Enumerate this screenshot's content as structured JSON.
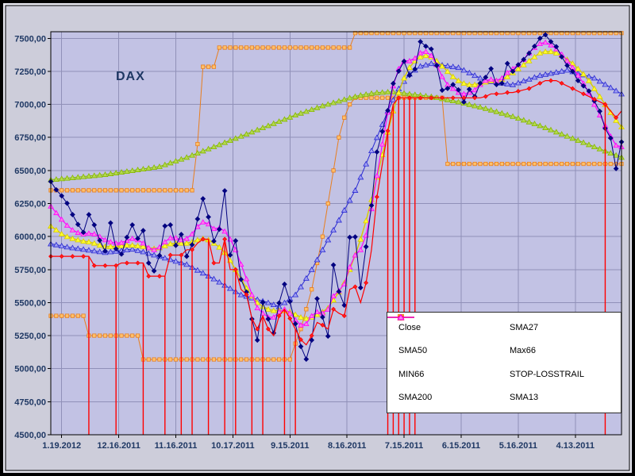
{
  "chart_data": {
    "type": "line",
    "title": "DAX",
    "xlabel": "",
    "ylabel": "",
    "ylim": [
      4500,
      7550
    ],
    "grid": true,
    "legend_position": "inside-bottom-right",
    "colors": {
      "frame": "#000000",
      "gap_band": "#e9e9f2",
      "chart_bg": "#cdcdda",
      "plot_bg": "#c2c2e4",
      "grid": "#9090b8",
      "axis_text": "#1f3864",
      "legend_bg": "#ffffff"
    },
    "y_tick_values": [
      7500,
      7250,
      7000,
      6750,
      6500,
      6250,
      6000,
      5750,
      5500,
      5250,
      5000,
      4750,
      4500
    ],
    "y_tick_labels": [
      "7500,00",
      "7250,00",
      "7000,00",
      "6750,00",
      "6500,00",
      "6250,00",
      "6000,00",
      "5750,00",
      "5500,00",
      "5250,00",
      "5000,00",
      "4750,00",
      "4500,00"
    ],
    "x_tick_indices": [
      2,
      12.5,
      23,
      33.5,
      44,
      54.5,
      65,
      75.5,
      86,
      96.5
    ],
    "x_tick_labels": [
      "1.19.2012",
      "12.16.2011",
      "11.16.2011",
      "10.17.2011",
      "9.15.2011",
      "8.16.2011",
      "7.15.2011",
      "6.15.2011",
      "5.16.2011",
      "4.13.2011"
    ],
    "draw_order": [
      "Max66",
      "MIN66",
      "SMA200",
      "SMA50",
      "SMA27",
      "SMA13",
      "Close",
      "STOP-LOSSTRAIL"
    ],
    "series": [
      {
        "name": "Close",
        "marker": "diamond",
        "color": "#000080",
        "fill": "#000080",
        "line_width": 1,
        "marker_size": 2.8,
        "marker_every": 1,
        "values": [
          6416,
          6354,
          6308,
          6252,
          6166,
          6092,
          6032,
          6166,
          6088,
          5971,
          5890,
          6103,
          5907,
          5867,
          5994,
          6088,
          5985,
          6045,
          5800,
          5740,
          5856,
          6080,
          6088,
          5933,
          6016,
          5850,
          5938,
          6133,
          6286,
          6148,
          5965,
          6055,
          6346,
          5860,
          5968,
          5675,
          5580,
          5376,
          5216,
          5502,
          5376,
          5270,
          5497,
          5639,
          5508,
          5340,
          5168,
          5072,
          5216,
          5530,
          5390,
          5246,
          5785,
          5584,
          5480,
          5994,
          5997,
          5613,
          5923,
          6236,
          6640,
          6796,
          6954,
          7158,
          7252,
          7326,
          7220,
          7267,
          7475,
          7440,
          7419,
          7294,
          7107,
          7121,
          7150,
          7110,
          7018,
          7115,
          7060,
          7160,
          7205,
          7270,
          7150,
          7160,
          7310,
          7250,
          7300,
          7340,
          7387,
          7440,
          7500,
          7527,
          7475,
          7437,
          7360,
          7295,
          7250,
          7180,
          7140,
          7101,
          7026,
          6948,
          6818,
          6745,
          6514,
          6716
        ]
      },
      {
        "name": "SMA50",
        "marker": "triangle",
        "color": "#2a2ad2",
        "fill": "#9f9ff2",
        "line_width": 1,
        "marker_size": 3,
        "marker_every": 1,
        "values": [
          5945,
          5938,
          5930,
          5922,
          5915,
          5910,
          5904,
          5898,
          5892,
          5886,
          5880,
          5885,
          5890,
          5895,
          5900,
          5905,
          5895,
          5885,
          5873,
          5861,
          5850,
          5838,
          5826,
          5814,
          5802,
          5790,
          5768,
          5746,
          5724,
          5702,
          5680,
          5656,
          5632,
          5608,
          5584,
          5560,
          5548,
          5536,
          5524,
          5512,
          5500,
          5485,
          5470,
          5500,
          5530,
          5560,
          5620,
          5685,
          5750,
          5825,
          5900,
          5975,
          6050,
          6125,
          6200,
          6275,
          6350,
          6450,
          6550,
          6650,
          6750,
          6850,
          6950,
          7035,
          7120,
          7175,
          7230,
          7260,
          7290,
          7300,
          7310,
          7304,
          7298,
          7292,
          7286,
          7280,
          7260,
          7240,
          7220,
          7200,
          7180,
          7174,
          7168,
          7162,
          7156,
          7150,
          7164,
          7178,
          7192,
          7206,
          7220,
          7228,
          7236,
          7244,
          7252,
          7260,
          7248,
          7236,
          7224,
          7212,
          7200,
          7176,
          7152,
          7128,
          7104,
          7080
        ]
      },
      {
        "name": "MIN66",
        "marker": "square",
        "color": "#e87e1e",
        "fill": "#ffc06a",
        "line_width": 1,
        "marker_size": 2.2,
        "marker_every": 1,
        "values": [
          5400,
          5400,
          5400,
          5400,
          5400,
          5400,
          5400,
          5250,
          5250,
          5250,
          5250,
          5250,
          5250,
          5250,
          5250,
          5250,
          5250,
          5070,
          5070,
          5070,
          5070,
          5070,
          5070,
          5070,
          5070,
          5070,
          5070,
          5070,
          5070,
          5070,
          5070,
          5070,
          5070,
          5070,
          5070,
          5070,
          5070,
          5070,
          5070,
          5070,
          5070,
          5070,
          5070,
          5070,
          5070,
          5190,
          5300,
          5450,
          5600,
          5800,
          6000,
          6250,
          6500,
          6750,
          6900,
          7000,
          7050,
          7050,
          7050,
          7050,
          7050,
          7050,
          7050,
          7050,
          7050,
          7050,
          7050,
          7050,
          7050,
          7050,
          7050,
          7050,
          7050,
          6550,
          6550,
          6550,
          6550,
          6550,
          6550,
          6550,
          6550,
          6550,
          6550,
          6550,
          6550,
          6550,
          6550,
          6550,
          6550,
          6550,
          6550,
          6550,
          6550,
          6550,
          6550,
          6550,
          6550,
          6550,
          6550,
          6550,
          6550,
          6550,
          6550,
          6550,
          6550,
          6550
        ]
      },
      {
        "name": "SMA200",
        "marker": "triangle",
        "color": "#86b800",
        "fill": "#b4d94e",
        "line_width": 1,
        "marker_size": 3,
        "marker_every": 1,
        "values": [
          6430,
          6434,
          6438,
          6442,
          6446,
          6450,
          6454,
          6458,
          6462,
          6466,
          6470,
          6476,
          6482,
          6488,
          6494,
          6500,
          6506,
          6512,
          6518,
          6524,
          6530,
          6544,
          6558,
          6572,
          6586,
          6600,
          6616,
          6632,
          6648,
          6664,
          6680,
          6696,
          6712,
          6728,
          6744,
          6760,
          6776,
          6792,
          6808,
          6824,
          6840,
          6856,
          6872,
          6888,
          6904,
          6920,
          6934,
          6948,
          6962,
          6976,
          6990,
          7002,
          7014,
          7026,
          7038,
          7050,
          7060,
          7070,
          7077,
          7084,
          7090,
          7092,
          7095,
          7094,
          7092,
          7085,
          7080,
          7075,
          7070,
          7065,
          7060,
          7052,
          7044,
          7036,
          7028,
          7020,
          7010,
          7000,
          6990,
          6980,
          6970,
          6958,
          6946,
          6934,
          6922,
          6910,
          6896,
          6882,
          6868,
          6854,
          6840,
          6824,
          6808,
          6792,
          6776,
          6760,
          6744,
          6728,
          6712,
          6696,
          6680,
          6664,
          6648,
          6632,
          6616,
          6600
        ]
      },
      {
        "name": "SMA27",
        "marker": "triangle",
        "color": "#d8cc00",
        "fill": "#ffff2e",
        "line_width": 1.4,
        "marker_size": 3,
        "marker_every": 1,
        "values": [
          6080,
          6050,
          6020,
          6000,
          5985,
          5975,
          5965,
          5960,
          5950,
          5935,
          5925,
          5925,
          5925,
          5930,
          5935,
          5935,
          5930,
          5925,
          5915,
          5910,
          5915,
          5930,
          5945,
          5950,
          5950,
          5950,
          5960,
          5975,
          5985,
          5975,
          5950,
          5920,
          5880,
          5820,
          5750,
          5680,
          5610,
          5550,
          5500,
          5470,
          5450,
          5440,
          5440,
          5440,
          5430,
          5410,
          5390,
          5380,
          5390,
          5410,
          5430,
          5460,
          5520,
          5580,
          5650,
          5750,
          5860,
          5980,
          6120,
          6280,
          6450,
          6620,
          6790,
          6950,
          7090,
          7200,
          7280,
          7330,
          7360,
          7370,
          7360,
          7330,
          7290,
          7250,
          7210,
          7180,
          7160,
          7150,
          7150,
          7160,
          7170,
          7180,
          7180,
          7190,
          7210,
          7240,
          7270,
          7300,
          7330,
          7360,
          7390,
          7400,
          7400,
          7390,
          7370,
          7340,
          7310,
          7270,
          7230,
          7180,
          7120,
          7060,
          7000,
          6940,
          6880,
          6830
        ]
      },
      {
        "name": "Max66",
        "marker": "square",
        "color": "#e87e1e",
        "fill": "#ffc06a",
        "line_width": 1,
        "marker_size": 2.2,
        "marker_every": 1,
        "values": [
          6350,
          6350,
          6350,
          6350,
          6350,
          6350,
          6350,
          6350,
          6350,
          6350,
          6350,
          6350,
          6350,
          6350,
          6350,
          6350,
          6350,
          6350,
          6350,
          6350,
          6350,
          6350,
          6350,
          6350,
          6350,
          6350,
          6350,
          6700,
          7285,
          7285,
          7285,
          7430,
          7430,
          7430,
          7430,
          7430,
          7430,
          7430,
          7430,
          7430,
          7430,
          7430,
          7430,
          7430,
          7430,
          7430,
          7430,
          7430,
          7430,
          7430,
          7430,
          7430,
          7430,
          7430,
          7430,
          7430,
          7540,
          7540,
          7540,
          7540,
          7540,
          7540,
          7540,
          7540,
          7540,
          7540,
          7540,
          7540,
          7540,
          7540,
          7540,
          7540,
          7540,
          7540,
          7540,
          7540,
          7540,
          7540,
          7540,
          7540,
          7540,
          7540,
          7540,
          7540,
          7540,
          7540,
          7540,
          7540,
          7540,
          7540,
          7540,
          7540,
          7540,
          7540,
          7540,
          7540,
          7540,
          7540,
          7540,
          7540,
          7540,
          7540,
          7540,
          7540,
          7540,
          7540
        ]
      },
      {
        "name": "STOP-LOSSTRAIL",
        "marker": "diamond",
        "color": "#ff0000",
        "fill": "#ff2020",
        "line_width": 1.2,
        "marker_size": 2.4,
        "marker_every": 2,
        "spike_indices": [
          7,
          12,
          17,
          21,
          24,
          26,
          29,
          32,
          34,
          37,
          39,
          43,
          45,
          62,
          63,
          64,
          65,
          66,
          67,
          102
        ],
        "values": [
          5850,
          5850,
          5850,
          5850,
          5850,
          5850,
          5850,
          5850,
          5780,
          5780,
          5780,
          5780,
          5780,
          5800,
          5800,
          5800,
          5800,
          5800,
          5700,
          5700,
          5700,
          5700,
          5860,
          5860,
          5860,
          5900,
          5900,
          5950,
          5980,
          5980,
          5800,
          5800,
          5980,
          5750,
          5750,
          5600,
          5560,
          5380,
          5300,
          5400,
          5300,
          5250,
          5400,
          5450,
          5380,
          5300,
          5220,
          5180,
          5250,
          5350,
          5330,
          5300,
          5450,
          5420,
          5400,
          5600,
          5620,
          5500,
          5650,
          5900,
          6300,
          6550,
          6800,
          7000,
          7050,
          7050,
          7050,
          7050,
          7050,
          7050,
          7050,
          7050,
          7050,
          7050,
          7050,
          7050,
          7050,
          7050,
          7050,
          7050,
          7060,
          7080,
          7080,
          7080,
          7090,
          7090,
          7100,
          7110,
          7120,
          7140,
          7160,
          7180,
          7180,
          7180,
          7160,
          7140,
          7120,
          7100,
          7080,
          7060,
          7040,
          7020,
          7000,
          6950,
          6900,
          6950
        ]
      },
      {
        "name": "SMA13",
        "marker": "triangle",
        "color": "#ff00ff",
        "fill": "#ff7ce8",
        "line_width": 1.2,
        "marker_size": 2.8,
        "marker_every": 1,
        "values": [
          6230,
          6180,
          6130,
          6085,
          6050,
          6030,
          6020,
          6025,
          6020,
          6000,
          5975,
          5960,
          5950,
          5955,
          5970,
          5985,
          5975,
          5950,
          5915,
          5900,
          5920,
          5960,
          5990,
          5990,
          5975,
          5985,
          6020,
          6075,
          6110,
          6095,
          6060,
          6065,
          6040,
          5980,
          5900,
          5790,
          5680,
          5560,
          5460,
          5420,
          5390,
          5390,
          5430,
          5450,
          5420,
          5370,
          5330,
          5340,
          5400,
          5430,
          5420,
          5450,
          5550,
          5590,
          5640,
          5770,
          5860,
          5900,
          6010,
          6210,
          6460,
          6700,
          6940,
          7140,
          7270,
          7330,
          7330,
          7350,
          7390,
          7400,
          7370,
          7300,
          7210,
          7150,
          7120,
          7090,
          7080,
          7090,
          7110,
          7150,
          7180,
          7190,
          7180,
          7200,
          7240,
          7270,
          7300,
          7340,
          7390,
          7430,
          7460,
          7470,
          7450,
          7420,
          7380,
          7330,
          7280,
          7220,
          7160,
          7090,
          7000,
          6920,
          6840,
          6760,
          6690,
          6680
        ]
      }
    ]
  },
  "legend": {
    "items": [
      {
        "label": "Close",
        "series": "Close"
      },
      {
        "label": "SMA50",
        "series": "SMA50"
      },
      {
        "label": "MIN66",
        "series": "MIN66"
      },
      {
        "label": "SMA200",
        "series": "SMA200"
      },
      {
        "label": "SMA27",
        "series": "SMA27"
      },
      {
        "label": "Max66",
        "series": "Max66"
      },
      {
        "label": "STOP-LOSSTRAIL",
        "series": "STOP-LOSSTRAIL"
      },
      {
        "label": "SMA13",
        "series": "SMA13"
      }
    ]
  }
}
